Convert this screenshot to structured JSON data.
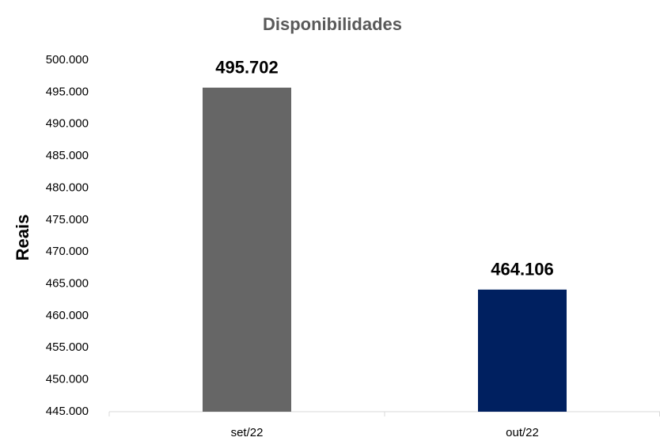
{
  "chart_data": {
    "type": "bar",
    "title": "Disponibilidades",
    "ylabel": "Reais",
    "categories": [
      "set/22",
      "out/22"
    ],
    "values": [
      495702,
      464106
    ],
    "value_labels": [
      "495.702",
      "464.106"
    ],
    "colors": [
      "#666666",
      "#002060"
    ],
    "ylim": [
      445000,
      500000
    ],
    "yticks": [
      {
        "value": 445000,
        "label": "445.000"
      },
      {
        "value": 450000,
        "label": "450.000"
      },
      {
        "value": 455000,
        "label": "455.000"
      },
      {
        "value": 460000,
        "label": "460.000"
      },
      {
        "value": 465000,
        "label": "465.000"
      },
      {
        "value": 470000,
        "label": "470.000"
      },
      {
        "value": 475000,
        "label": "475.000"
      },
      {
        "value": 480000,
        "label": "480.000"
      },
      {
        "value": 485000,
        "label": "485.000"
      },
      {
        "value": 490000,
        "label": "490.000"
      },
      {
        "value": 495000,
        "label": "495.000"
      },
      {
        "value": 500000,
        "label": "500.000"
      }
    ],
    "grid": false
  }
}
